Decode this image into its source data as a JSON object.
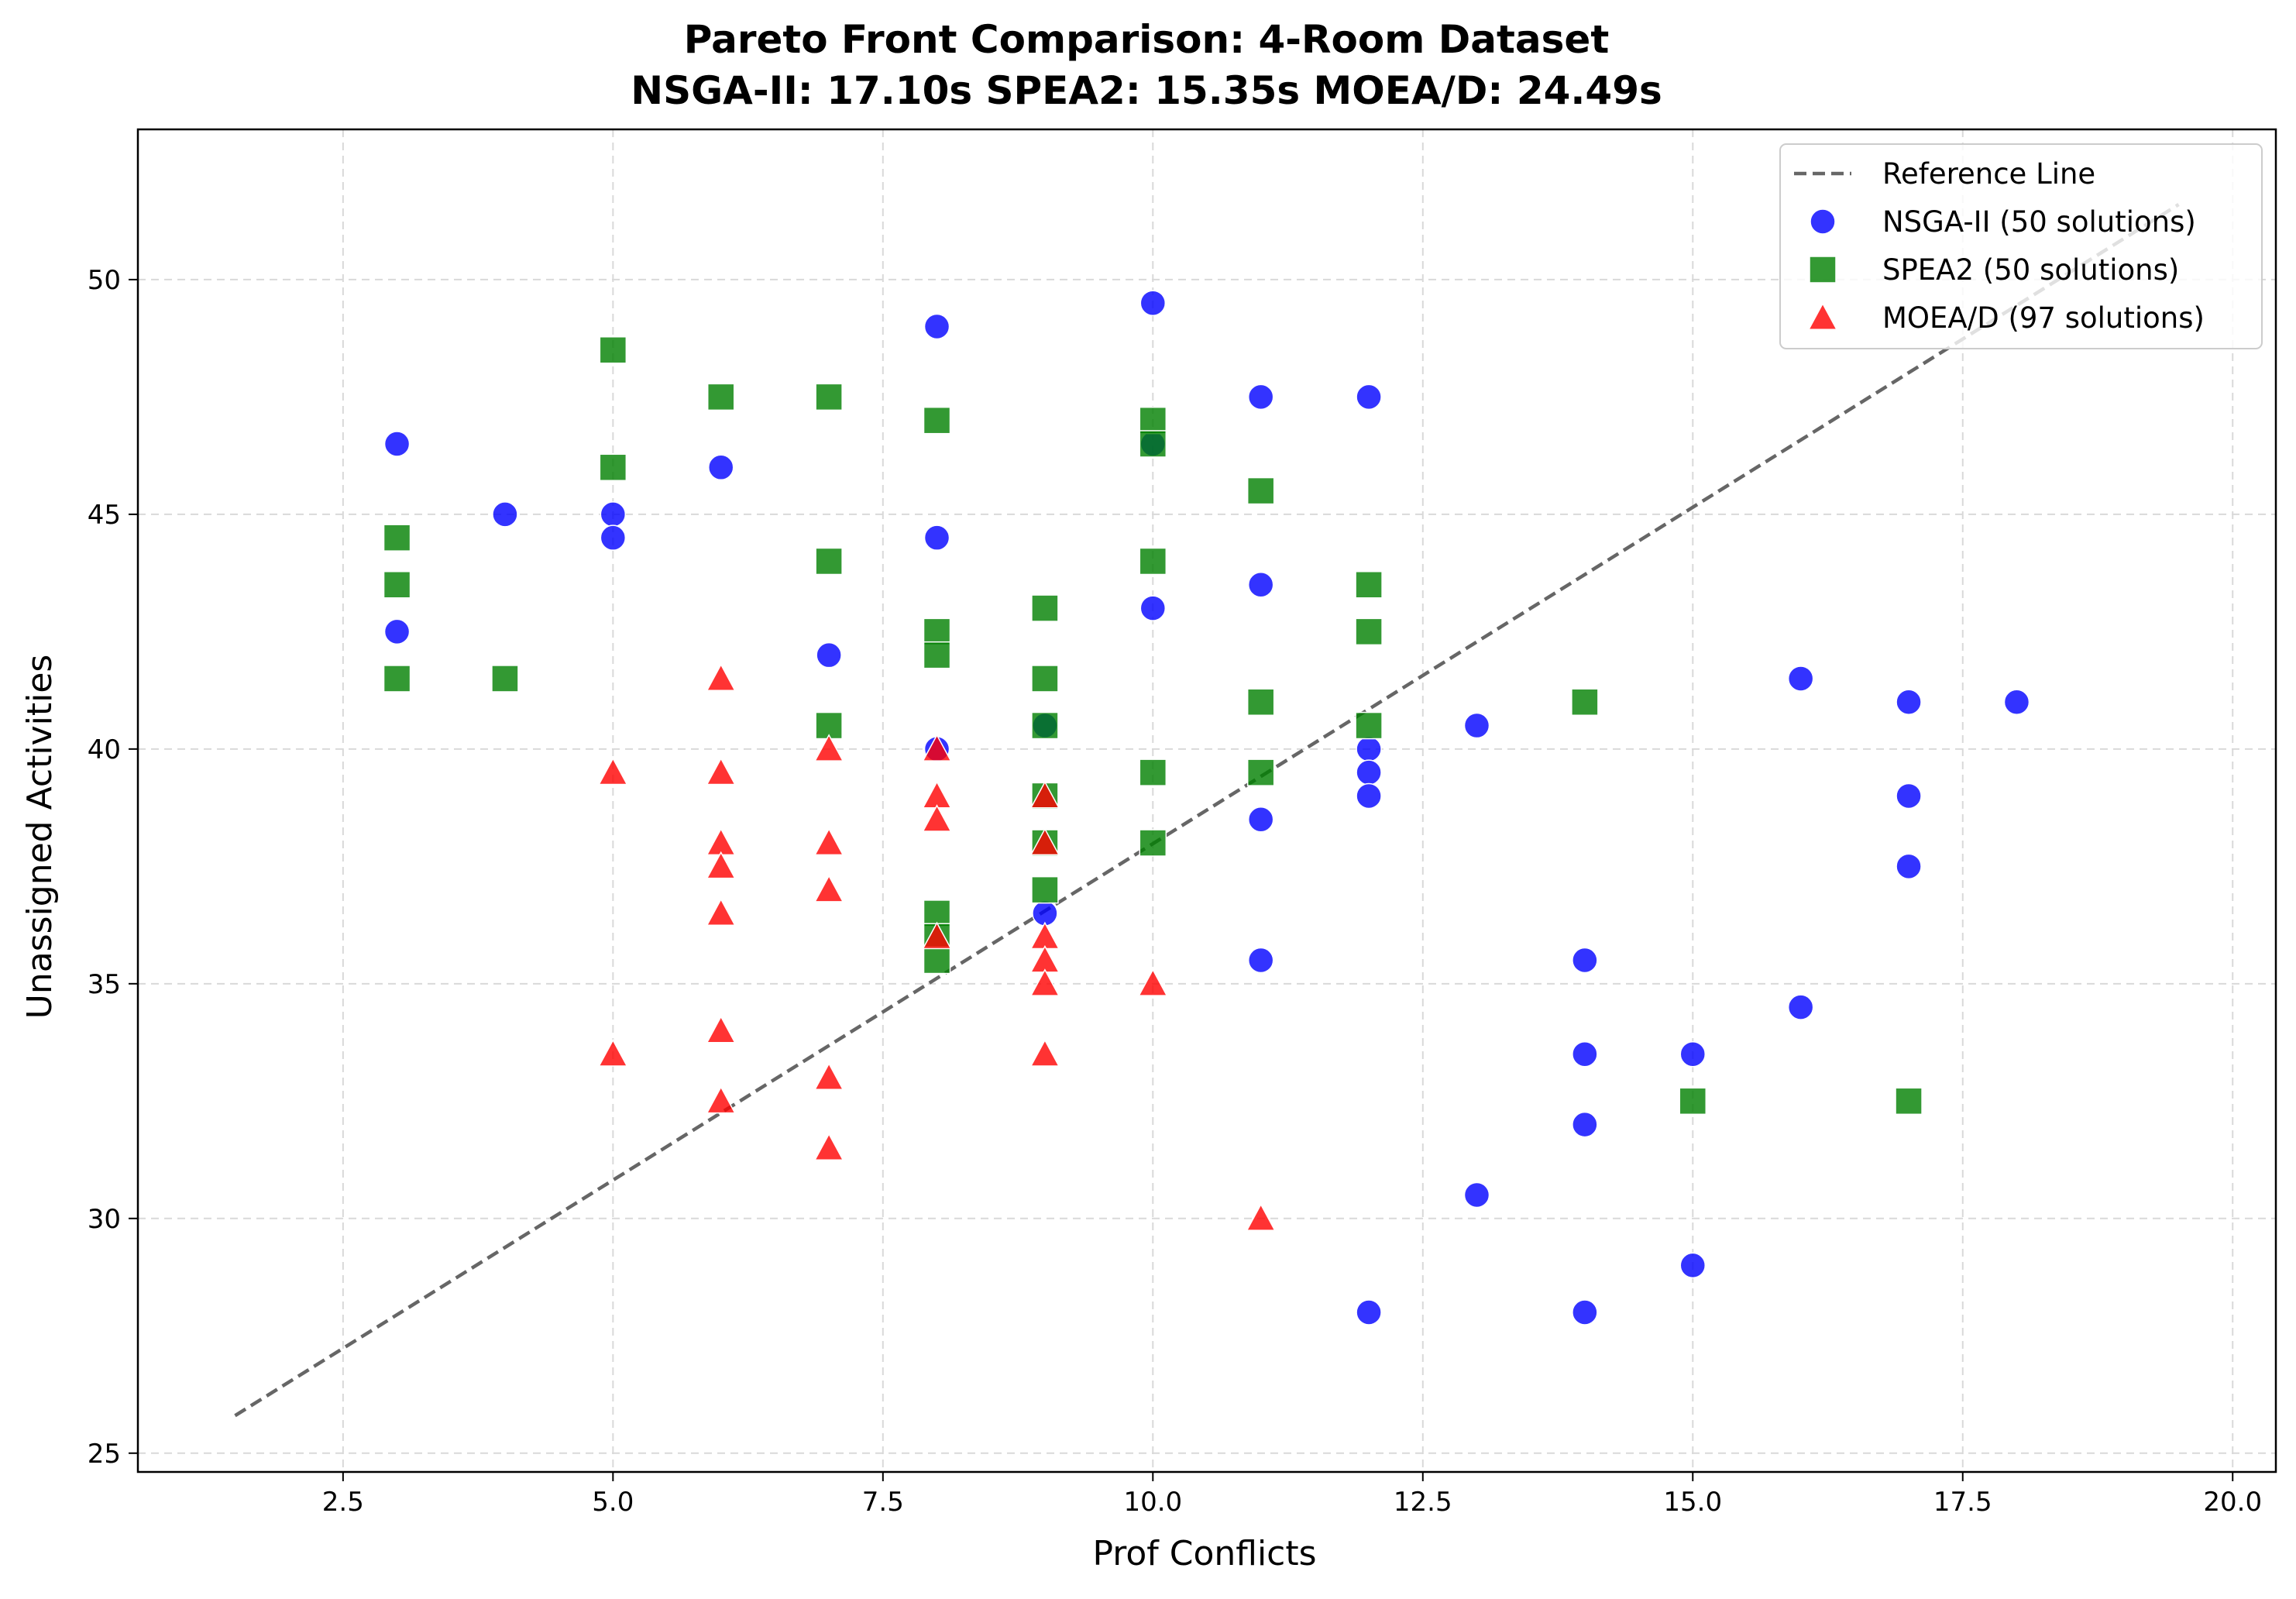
{
  "chart_data": {
    "type": "scatter",
    "title": "Pareto Front Comparison: 4-Room Dataset",
    "subtitle": "NSGA-II: 17.10s  SPEA2: 15.35s  MOEA/D: 24.49s",
    "xlabel": "Prof Conflicts",
    "ylabel": "Unassigned Activities",
    "xlim": [
      0.6,
      20.4
    ],
    "ylim": [
      24.6,
      53.2
    ],
    "xticks": [
      2.5,
      5.0,
      7.5,
      10.0,
      12.5,
      15.0,
      17.5,
      20.0
    ],
    "xtick_labels": [
      "2.5",
      "5.0",
      "7.5",
      "10.0",
      "12.5",
      "15.0",
      "17.5",
      "20.0"
    ],
    "yticks": [
      25,
      30,
      35,
      40,
      45,
      50
    ],
    "ytick_labels": [
      "25",
      "30",
      "35",
      "40",
      "45",
      "50"
    ],
    "grid": true,
    "legend_position": "top-right",
    "reference_line": {
      "name": "Reference Line",
      "color": "#666666",
      "style": "dashed",
      "x": [
        1.5,
        19.5
      ],
      "y": [
        25.8,
        51.6
      ]
    },
    "series": [
      {
        "name": "NSGA-II (50 solutions)",
        "marker": "circle",
        "color": "#0000ff",
        "points": [
          [
            3,
            46.5
          ],
          [
            3,
            42.5
          ],
          [
            4,
            45
          ],
          [
            5,
            45
          ],
          [
            5,
            44.5
          ],
          [
            6,
            46
          ],
          [
            7,
            42
          ],
          [
            8,
            49
          ],
          [
            8,
            44.5
          ],
          [
            8,
            40
          ],
          [
            9,
            40.5
          ],
          [
            9,
            36.5
          ],
          [
            10,
            49.5
          ],
          [
            10,
            46.5
          ],
          [
            10,
            43
          ],
          [
            11,
            47.5
          ],
          [
            11,
            43.5
          ],
          [
            11,
            38.5
          ],
          [
            11,
            35.5
          ],
          [
            12,
            47.5
          ],
          [
            12,
            40
          ],
          [
            12,
            39.5
          ],
          [
            12,
            39
          ],
          [
            12,
            28
          ],
          [
            13,
            40.5
          ],
          [
            13,
            30.5
          ],
          [
            14,
            35.5
          ],
          [
            14,
            33.5
          ],
          [
            14,
            32
          ],
          [
            14,
            28
          ],
          [
            15,
            33.5
          ],
          [
            15,
            29
          ],
          [
            16,
            41.5
          ],
          [
            16,
            34.5
          ],
          [
            17,
            41
          ],
          [
            17,
            39
          ],
          [
            17,
            37.5
          ],
          [
            18,
            41
          ]
        ]
      },
      {
        "name": "SPEA2 (50 solutions)",
        "marker": "square",
        "color": "#008000",
        "points": [
          [
            3,
            44.5
          ],
          [
            3,
            43.5
          ],
          [
            3,
            41.5
          ],
          [
            4,
            41.5
          ],
          [
            5,
            48.5
          ],
          [
            5,
            46
          ],
          [
            6,
            47.5
          ],
          [
            7,
            47.5
          ],
          [
            7,
            44
          ],
          [
            7,
            40.5
          ],
          [
            8,
            47
          ],
          [
            8,
            42.5
          ],
          [
            8,
            42
          ],
          [
            8,
            36.5
          ],
          [
            8,
            36
          ],
          [
            8,
            35.5
          ],
          [
            9,
            43
          ],
          [
            9,
            41.5
          ],
          [
            9,
            40.5
          ],
          [
            9,
            39
          ],
          [
            9,
            38
          ],
          [
            9,
            37
          ],
          [
            10,
            47
          ],
          [
            10,
            46.5
          ],
          [
            10,
            44
          ],
          [
            10,
            39.5
          ],
          [
            10,
            38
          ],
          [
            11,
            45.5
          ],
          [
            11,
            41
          ],
          [
            11,
            39.5
          ],
          [
            12,
            43.5
          ],
          [
            12,
            42.5
          ],
          [
            12,
            40.5
          ],
          [
            14,
            41
          ],
          [
            15,
            32.5
          ],
          [
            17,
            32.5
          ]
        ]
      },
      {
        "name": "MOEA/D (97 solutions)",
        "marker": "triangle",
        "color": "#ff0000",
        "points": [
          [
            5,
            39.5
          ],
          [
            5,
            33.5
          ],
          [
            6,
            41.5
          ],
          [
            6,
            39.5
          ],
          [
            6,
            38
          ],
          [
            6,
            37.5
          ],
          [
            6,
            36.5
          ],
          [
            6,
            34
          ],
          [
            6,
            32.5
          ],
          [
            7,
            40
          ],
          [
            7,
            38
          ],
          [
            7,
            37
          ],
          [
            7,
            33
          ],
          [
            7,
            31.5
          ],
          [
            8,
            40
          ],
          [
            8,
            39
          ],
          [
            8,
            38.5
          ],
          [
            8,
            36
          ],
          [
            9,
            39
          ],
          [
            9,
            38
          ],
          [
            9,
            36
          ],
          [
            9,
            35.5
          ],
          [
            9,
            35
          ],
          [
            9,
            33.5
          ],
          [
            10,
            35
          ],
          [
            11,
            30
          ]
        ]
      }
    ]
  }
}
